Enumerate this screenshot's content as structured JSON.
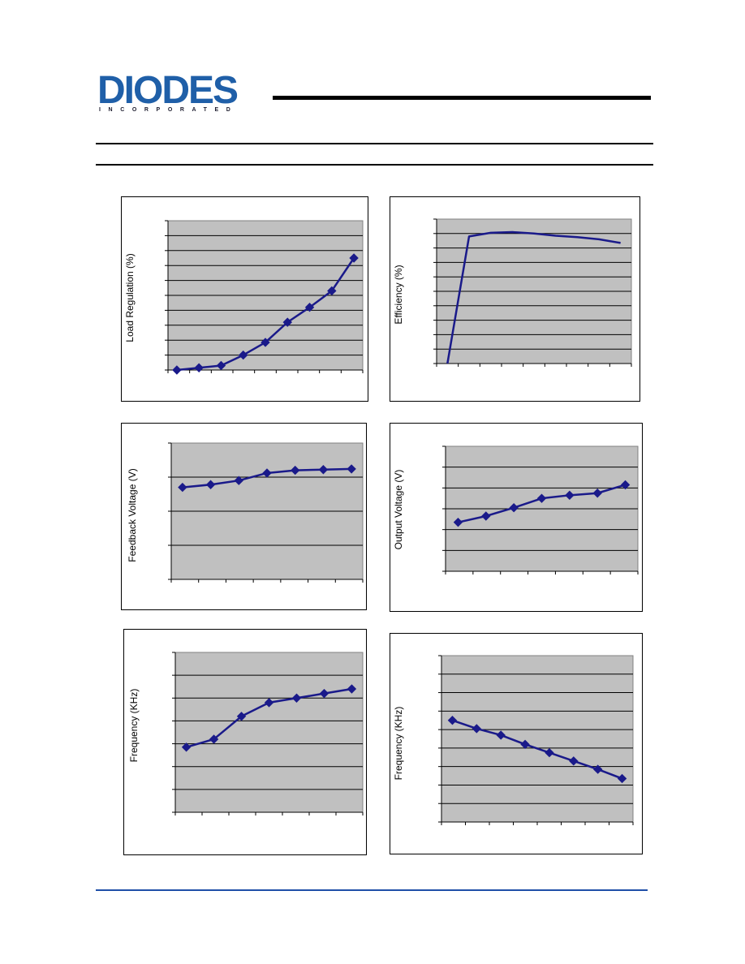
{
  "logo": {
    "name": "DIODES",
    "tagline": "INCORPORATED"
  },
  "colors": {
    "plot_bg": "#c0c0c0",
    "series": "#1a1a8a",
    "brand": "#1f5fa8",
    "footer_rule": "#1f4fa8"
  },
  "chart_data": [
    {
      "type": "line",
      "ylabel": "Load Regulation (%)",
      "marker": "diamond",
      "grid": true,
      "x": [
        0,
        1,
        2,
        3,
        4,
        5,
        6,
        7,
        8
      ],
      "series": [
        {
          "values": [
            0.0,
            0.15,
            0.3,
            1.0,
            1.85,
            3.2,
            4.2,
            5.3,
            7.5
          ]
        }
      ],
      "xlim": [
        -0.4,
        8.4
      ],
      "ylim": [
        0,
        10
      ]
    },
    {
      "type": "line",
      "ylabel": "Efficiency (%)",
      "marker": "none",
      "grid": true,
      "x": [
        0.5,
        1.5,
        2.5,
        3.5,
        4.5,
        5.5,
        6.5,
        7.5,
        8.5
      ],
      "series": [
        {
          "values": [
            0.0,
            88.0,
            90.5,
            91.0,
            90.0,
            88.5,
            87.5,
            86.0,
            83.5
          ]
        }
      ],
      "xlim": [
        0,
        9
      ],
      "ylim": [
        0,
        100
      ]
    },
    {
      "type": "line",
      "ylabel": "Feedback Voltage (V)",
      "marker": "diamond",
      "grid": true,
      "x": [
        0,
        1,
        2,
        3,
        4,
        5,
        6
      ],
      "series": [
        {
          "values": [
            2.7,
            2.78,
            2.9,
            3.12,
            3.2,
            3.22,
            3.24
          ]
        }
      ],
      "xlim": [
        -0.4,
        6.4
      ],
      "ylim": [
        0,
        4
      ]
    },
    {
      "type": "line",
      "ylabel": "Output Voltage (V)",
      "marker": "diamond",
      "grid": true,
      "x": [
        0,
        1,
        2,
        3,
        4,
        5,
        6
      ],
      "series": [
        {
          "values": [
            2.35,
            2.65,
            3.05,
            3.5,
            3.65,
            3.75,
            4.15
          ]
        }
      ],
      "xlim": [
        -0.45,
        6.45
      ],
      "ylim": [
        0,
        6
      ]
    },
    {
      "type": "line",
      "ylabel": "Frequency (KHz)",
      "marker": "diamond",
      "grid": true,
      "x": [
        0,
        1,
        2,
        3,
        4,
        5,
        6
      ],
      "series": [
        {
          "values": [
            2.85,
            3.2,
            4.2,
            4.8,
            5.0,
            5.2,
            5.4
          ]
        }
      ],
      "xlim": [
        -0.4,
        6.4
      ],
      "ylim": [
        0,
        7
      ]
    },
    {
      "type": "line",
      "ylabel": "Frequency (KHz)",
      "marker": "diamond",
      "grid": true,
      "x": [
        0,
        1,
        2,
        3,
        4,
        5,
        6,
        7
      ],
      "series": [
        {
          "values": [
            5.5,
            5.05,
            4.7,
            4.2,
            3.75,
            3.3,
            2.85,
            2.35
          ]
        }
      ],
      "xlim": [
        -0.45,
        7.45
      ],
      "ylim": [
        0,
        9
      ]
    }
  ]
}
